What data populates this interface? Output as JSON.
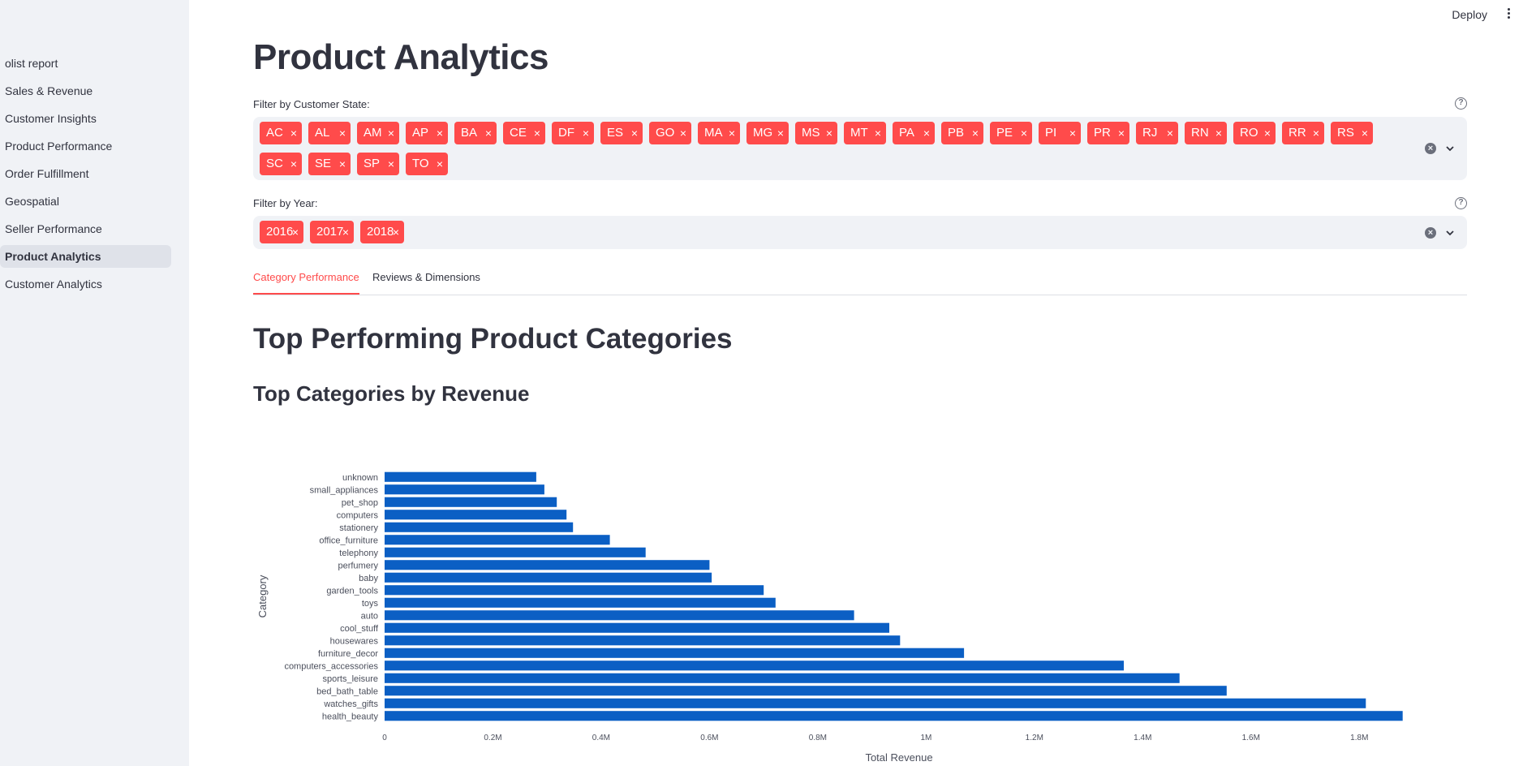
{
  "header": {
    "deploy_label": "Deploy"
  },
  "sidebar": {
    "items": [
      {
        "label": "olist report",
        "active": false
      },
      {
        "label": "Sales & Revenue",
        "active": false
      },
      {
        "label": "Customer Insights",
        "active": false
      },
      {
        "label": "Product Performance",
        "active": false
      },
      {
        "label": "Order Fulfillment",
        "active": false
      },
      {
        "label": "Geospatial",
        "active": false
      },
      {
        "label": "Seller Performance",
        "active": false
      },
      {
        "label": "Product Analytics",
        "active": true
      },
      {
        "label": "Customer Analytics",
        "active": false
      }
    ]
  },
  "main": {
    "title": "Product Analytics",
    "state_filter": {
      "label": "Filter by Customer State:",
      "tags": [
        "AC",
        "AL",
        "AM",
        "AP",
        "BA",
        "CE",
        "DF",
        "ES",
        "GO",
        "MA",
        "MG",
        "MS",
        "MT",
        "PA",
        "PB",
        "PE",
        "PI",
        "PR",
        "RJ",
        "RN",
        "RO",
        "RR",
        "RS",
        "SC",
        "SE",
        "SP",
        "TO"
      ]
    },
    "year_filter": {
      "label": "Filter by Year:",
      "tags": [
        "2016",
        "2017",
        "2018"
      ]
    },
    "tabs": [
      {
        "label": "Category Performance",
        "active": true
      },
      {
        "label": "Reviews & Dimensions",
        "active": false
      }
    ],
    "section_title": "Top Performing Product Categories",
    "subsection_title": "Top Categories by Revenue"
  },
  "colors": {
    "accent": "#ff4b4b",
    "bar": "#0b5fc4",
    "sidebar_bg": "#f0f2f6"
  },
  "chart_data": {
    "type": "bar",
    "orientation": "horizontal",
    "xlabel": "Total Revenue",
    "ylabel": "Category",
    "xlim": [
      0,
      1900000
    ],
    "xticks": [
      {
        "value": 0,
        "label": "0"
      },
      {
        "value": 200000,
        "label": "0.2M"
      },
      {
        "value": 400000,
        "label": "0.4M"
      },
      {
        "value": 600000,
        "label": "0.6M"
      },
      {
        "value": 800000,
        "label": "0.8M"
      },
      {
        "value": 1000000,
        "label": "1M"
      },
      {
        "value": 1200000,
        "label": "1.2M"
      },
      {
        "value": 1400000,
        "label": "1.4M"
      },
      {
        "value": 1600000,
        "label": "1.6M"
      },
      {
        "value": 1800000,
        "label": "1.8M"
      }
    ],
    "categories": [
      "unknown",
      "small_appliances",
      "pet_shop",
      "computers",
      "stationery",
      "office_furniture",
      "telephony",
      "perfumery",
      "baby",
      "garden_tools",
      "toys",
      "auto",
      "cool_stuff",
      "housewares",
      "furniture_decor",
      "computers_accessories",
      "sports_leisure",
      "bed_bath_table",
      "watches_gifts",
      "health_beauty"
    ],
    "values": [
      280000,
      295000,
      318000,
      336000,
      348000,
      416000,
      482000,
      600000,
      604000,
      700000,
      722000,
      867000,
      932000,
      952000,
      1070000,
      1365000,
      1468000,
      1555000,
      1812000,
      1880000
    ],
    "grid": false,
    "legend": "none"
  }
}
